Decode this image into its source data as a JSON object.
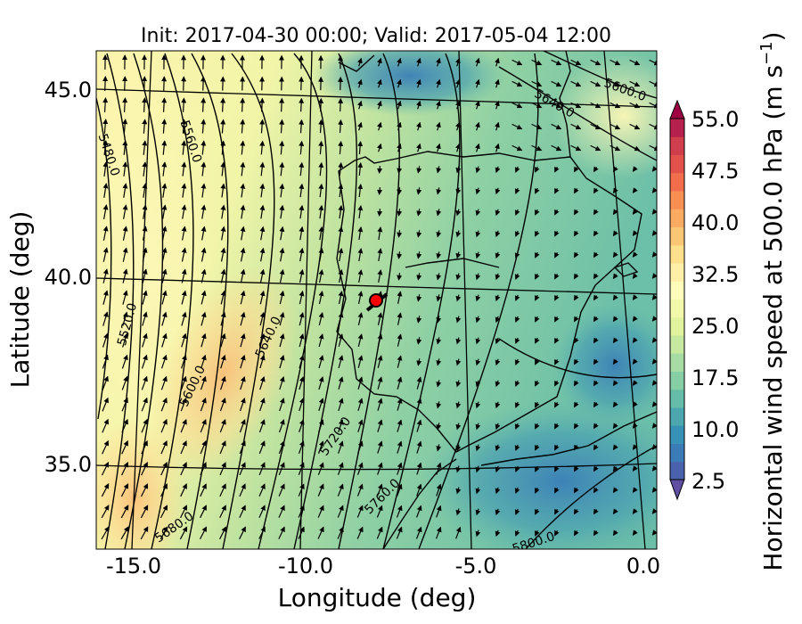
{
  "title": "Init: 2017-04-30 00:00; Valid: 2017-05-04 12:00",
  "xaxis": {
    "label": "Longitude (deg)",
    "ticks": [
      "-15.0",
      "-10.0",
      "-5.0",
      "0.0"
    ],
    "range": [
      -16,
      0.2
    ]
  },
  "yaxis": {
    "label": "Latitude (deg)",
    "ticks": [
      "45.0",
      "40.0",
      "35.0"
    ],
    "range": [
      32.8,
      46
    ]
  },
  "colorbar": {
    "label": "Horizontal wind speed at 500.0 hPa (m s$^{-1}$)",
    "label_text": "Horizontal wind speed at 500.0 hPa (m s",
    "label_exp": "−1",
    "label_close": ")",
    "ticks": [
      "55.0",
      "47.5",
      "40.0",
      "32.5",
      "25.0",
      "17.5",
      "10.0",
      "2.5"
    ],
    "min": 2.5,
    "max": 55.0,
    "step": 2.5,
    "colormap": "Spectral_r",
    "extend": "both",
    "colors": [
      "#5e4fa2",
      "#4a61ab",
      "#3b7cb8",
      "#3892b6",
      "#4ca7b0",
      "#66bda7",
      "#86cea3",
      "#a7dba4",
      "#c6e89f",
      "#e0f29c",
      "#f1f8a9",
      "#fefcbb",
      "#fff0a8",
      "#fedf8c",
      "#fdc675",
      "#fdab62",
      "#f88e52",
      "#f26d4a",
      "#e2524a",
      "#d03d4d",
      "#b5204c",
      "#9e0142"
    ]
  },
  "contours": {
    "variable": "geopotential height",
    "labels": [
      "5480.0",
      "5560.0",
      "5520.0",
      "5600.0",
      "5640.0",
      "5680.0",
      "5720.0",
      "5760.0",
      "5800.0",
      "5640.0",
      "5600.0"
    ]
  },
  "marker": {
    "label": "station",
    "color": "#ff0000",
    "lon": -7.6,
    "lat": 39.4
  }
}
